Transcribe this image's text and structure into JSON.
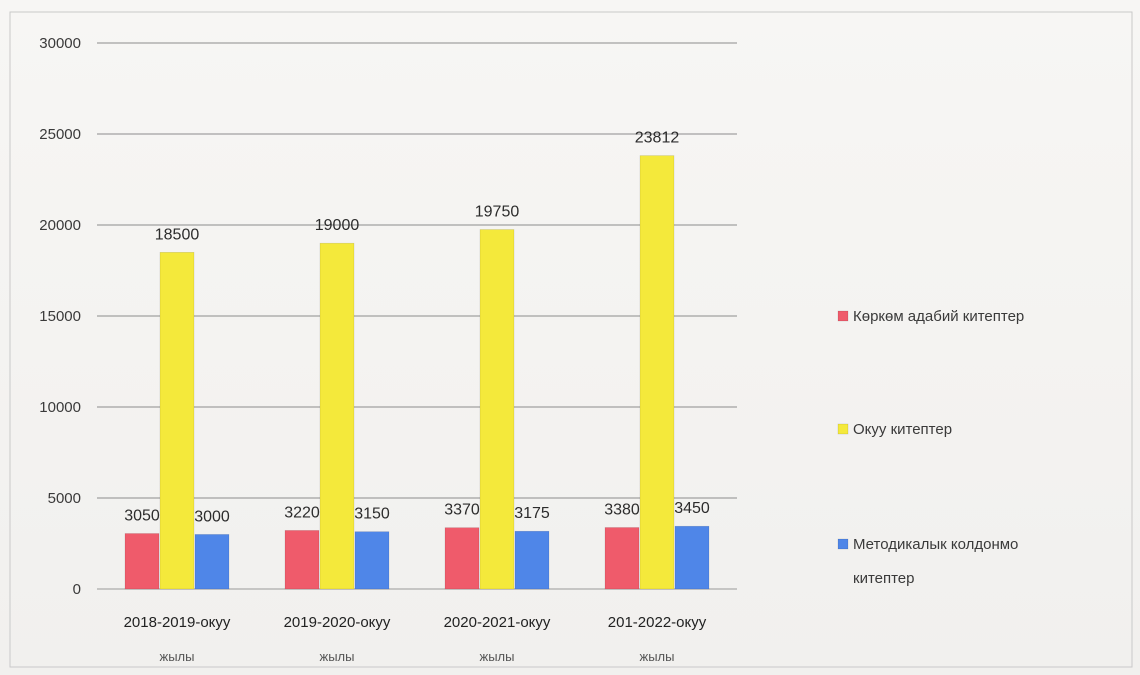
{
  "chart_data": {
    "type": "bar",
    "categories": [
      [
        "2018-2019-окуу",
        "жылы"
      ],
      [
        "2019-2020-окуу",
        "жылы"
      ],
      [
        "2020-2021-окуу",
        "жылы"
      ],
      [
        "201-2022-окуу",
        "жылы"
      ]
    ],
    "series": [
      {
        "name": "Көркөм адабий китептер",
        "color": "#ef5b6b",
        "values": [
          3050,
          3220,
          3370,
          3380
        ]
      },
      {
        "name": "Окуу китептер",
        "color": "#f4e93b",
        "values": [
          18500,
          19000,
          19750,
          23812
        ]
      },
      {
        "name": "Методикалык колдонмо китептер",
        "color": "#4f86e8",
        "values": [
          3000,
          3150,
          3175,
          3450
        ]
      }
    ],
    "legend_lines": [
      [
        "Көркөм адабий китептер"
      ],
      [
        "Окуу китептер"
      ],
      [
        "Методикалык колдонмо",
        "китептер"
      ]
    ],
    "yticks": [
      0,
      5000,
      10000,
      15000,
      20000,
      25000,
      30000
    ],
    "ylim": [
      0,
      30000
    ],
    "grid": true,
    "legend_position": "right",
    "title": "",
    "xlabel": "",
    "ylabel": ""
  }
}
